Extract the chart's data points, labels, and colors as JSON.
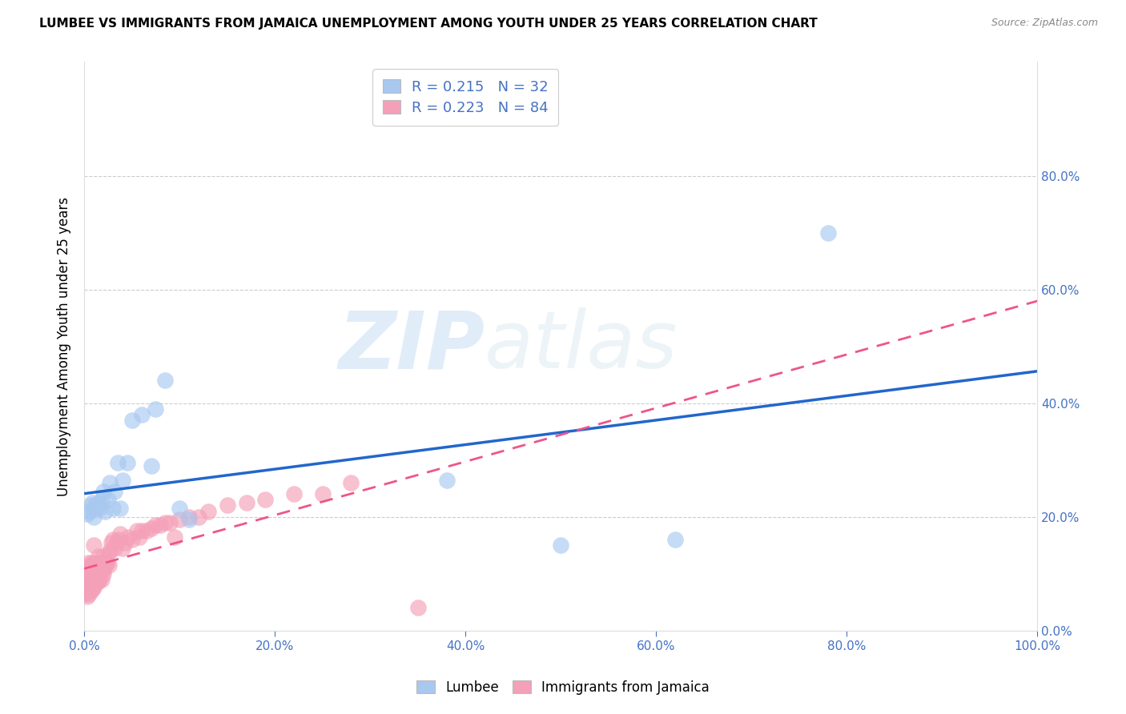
{
  "title": "LUMBEE VS IMMIGRANTS FROM JAMAICA UNEMPLOYMENT AMONG YOUTH UNDER 25 YEARS CORRELATION CHART",
  "source": "Source: ZipAtlas.com",
  "ylabel": "Unemployment Among Youth under 25 years",
  "lumbee_color": "#A8C8F0",
  "jamaica_color": "#F4A0B8",
  "lumbee_line_color": "#2266CC",
  "jamaica_line_color": "#EE5588",
  "watermark_zip": "ZIP",
  "watermark_atlas": "atlas",
  "legend_lumbee_label": "R = 0.215   N = 32",
  "legend_jamaica_label": "R = 0.223   N = 84",
  "lumbee_x": [
    0.003,
    0.005,
    0.007,
    0.008,
    0.01,
    0.01,
    0.012,
    0.013,
    0.015,
    0.017,
    0.018,
    0.02,
    0.022,
    0.025,
    0.027,
    0.03,
    0.032,
    0.035,
    0.038,
    0.04,
    0.045,
    0.05,
    0.06,
    0.07,
    0.075,
    0.085,
    0.1,
    0.11,
    0.38,
    0.5,
    0.62,
    0.78
  ],
  "lumbee_y": [
    0.205,
    0.21,
    0.22,
    0.225,
    0.2,
    0.215,
    0.22,
    0.215,
    0.225,
    0.215,
    0.23,
    0.245,
    0.21,
    0.23,
    0.26,
    0.215,
    0.245,
    0.295,
    0.215,
    0.265,
    0.295,
    0.37,
    0.38,
    0.29,
    0.39,
    0.44,
    0.215,
    0.195,
    0.265,
    0.15,
    0.16,
    0.7
  ],
  "jamaica_x": [
    0.001,
    0.001,
    0.002,
    0.002,
    0.003,
    0.003,
    0.003,
    0.004,
    0.004,
    0.004,
    0.005,
    0.005,
    0.005,
    0.006,
    0.006,
    0.006,
    0.007,
    0.007,
    0.007,
    0.008,
    0.008,
    0.008,
    0.009,
    0.009,
    0.01,
    0.01,
    0.01,
    0.01,
    0.011,
    0.011,
    0.012,
    0.012,
    0.013,
    0.013,
    0.014,
    0.014,
    0.015,
    0.015,
    0.016,
    0.016,
    0.017,
    0.018,
    0.018,
    0.019,
    0.02,
    0.02,
    0.021,
    0.022,
    0.023,
    0.024,
    0.025,
    0.026,
    0.027,
    0.028,
    0.03,
    0.032,
    0.034,
    0.036,
    0.038,
    0.04,
    0.043,
    0.046,
    0.05,
    0.055,
    0.058,
    0.06,
    0.065,
    0.07,
    0.075,
    0.08,
    0.085,
    0.09,
    0.095,
    0.1,
    0.11,
    0.12,
    0.13,
    0.15,
    0.17,
    0.19,
    0.22,
    0.25,
    0.28,
    0.35
  ],
  "jamaica_y": [
    0.065,
    0.095,
    0.075,
    0.105,
    0.06,
    0.08,
    0.11,
    0.07,
    0.09,
    0.12,
    0.065,
    0.085,
    0.105,
    0.075,
    0.09,
    0.115,
    0.07,
    0.09,
    0.11,
    0.08,
    0.1,
    0.12,
    0.075,
    0.105,
    0.075,
    0.095,
    0.115,
    0.15,
    0.085,
    0.105,
    0.09,
    0.12,
    0.085,
    0.105,
    0.085,
    0.115,
    0.09,
    0.13,
    0.09,
    0.12,
    0.105,
    0.09,
    0.12,
    0.105,
    0.1,
    0.13,
    0.11,
    0.115,
    0.12,
    0.12,
    0.135,
    0.115,
    0.14,
    0.155,
    0.16,
    0.145,
    0.155,
    0.16,
    0.17,
    0.145,
    0.155,
    0.165,
    0.16,
    0.175,
    0.165,
    0.175,
    0.175,
    0.18,
    0.185,
    0.185,
    0.19,
    0.19,
    0.165,
    0.195,
    0.2,
    0.2,
    0.21,
    0.22,
    0.225,
    0.23,
    0.24,
    0.24,
    0.26,
    0.04
  ],
  "xlim": [
    0.0,
    1.0
  ],
  "ylim": [
    0.0,
    1.0
  ],
  "ytick_positions": [
    0.0,
    0.2,
    0.4,
    0.6,
    0.8
  ],
  "ytick_labels_right": [
    "0.0%",
    "20.0%",
    "40.0%",
    "60.0%",
    "80.0%"
  ],
  "xtick_positions": [
    0.0,
    0.2,
    0.4,
    0.6,
    0.8,
    1.0
  ],
  "xtick_labels": [
    "0.0%",
    "20.0%",
    "40.0%",
    "60.0%",
    "80.0%",
    "100.0%"
  ],
  "grid_color": "#cccccc",
  "tick_color": "#4472C4",
  "title_fontsize": 11,
  "source_fontsize": 9,
  "label_fontsize": 12,
  "tick_fontsize": 11,
  "scatter_size": 220,
  "scatter_alpha": 0.65
}
